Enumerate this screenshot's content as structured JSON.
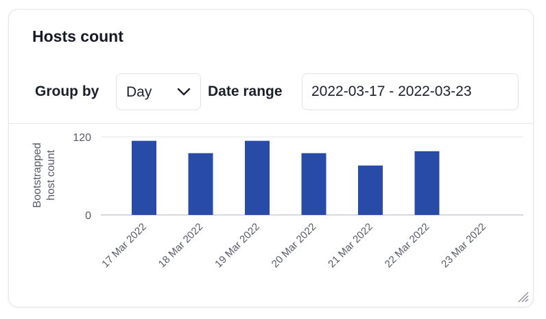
{
  "card": {
    "title": "Hosts count"
  },
  "toolbar": {
    "group_by_label": "Group by",
    "group_by_value": "Day",
    "date_range_label": "Date range",
    "date_range_value": "2022-03-17 - 2022-03-23"
  },
  "icons": {
    "select": "chevron-down-icon",
    "resize": "resize-handle-icon"
  },
  "chart_data": {
    "type": "bar",
    "ylabel": "Bootstrapped host count",
    "ylabel_lines": [
      "Bootstrapped",
      "host count"
    ],
    "xlabel": "",
    "ylim": [
      0,
      120
    ],
    "yticks": [
      0,
      120
    ],
    "categories": [
      "17 Mar 2022",
      "18 Mar 2022",
      "19 Mar 2022",
      "20 Mar 2022",
      "21 Mar 2022",
      "22 Mar 2022",
      "23 Mar 2022"
    ],
    "values": [
      114,
      95,
      114,
      95,
      76,
      98,
      0
    ],
    "bar_color": "#284ba8",
    "grid": "horizontal",
    "legend": "none"
  }
}
